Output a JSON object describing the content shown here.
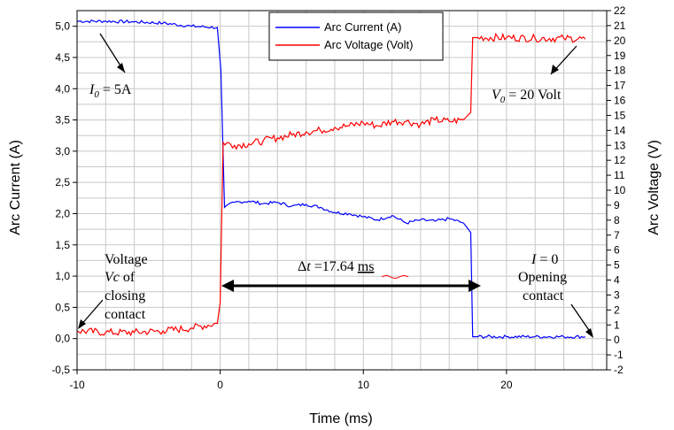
{
  "chart_data": {
    "type": "line",
    "xlabel": "Time (ms)",
    "ylabel_left": "Arc Current (A)",
    "ylabel_right": "Arc Voltage (V)",
    "xlim": [
      -10,
      27
    ],
    "ylim_left": [
      -0.5,
      5.25
    ],
    "ylim_right": [
      -2,
      22
    ],
    "x_ticks": [
      "-10",
      "0",
      "10",
      "20"
    ],
    "y_left_ticks": [
      "-0,5",
      "0,0",
      "0,5",
      "1,0",
      "1,5",
      "2,0",
      "2,5",
      "3,0",
      "3,5",
      "4,0",
      "4,5",
      "5,0"
    ],
    "y_right_ticks": [
      "-2",
      "-1",
      "0",
      "1",
      "2",
      "3",
      "4",
      "5",
      "6",
      "7",
      "8",
      "9",
      "10",
      "11",
      "12",
      "13",
      "14",
      "15",
      "16",
      "17",
      "18",
      "19",
      "20",
      "21",
      "22"
    ],
    "grid": true,
    "legend_position": "top-center",
    "series": [
      {
        "name": "Arc Current (A)",
        "axis": "left",
        "color": "#0000ff",
        "x": [
          -10,
          -8,
          -6,
          -4,
          -2,
          -0.2,
          0.05,
          0.3,
          1,
          2,
          3,
          4,
          5,
          6,
          7,
          8,
          9,
          10,
          11,
          12,
          13,
          14,
          15,
          16,
          17,
          17.5,
          17.64,
          18,
          20,
          22,
          24,
          25.5
        ],
        "y": [
          5.08,
          5.08,
          5.07,
          5.05,
          5.0,
          4.98,
          4.3,
          2.1,
          2.18,
          2.2,
          2.16,
          2.18,
          2.12,
          2.15,
          2.1,
          2.02,
          2.0,
          1.95,
          1.9,
          1.97,
          1.85,
          1.9,
          1.88,
          1.92,
          1.85,
          1.7,
          0.03,
          0.03,
          0.03,
          0.03,
          0.03,
          0.03
        ]
      },
      {
        "name": "Arc Voltage (Volt)",
        "axis": "right",
        "color": "#ff0000",
        "x": [
          -10,
          -8,
          -6,
          -4,
          -2,
          -0.2,
          0.0,
          0.2,
          1,
          2,
          3,
          4,
          5,
          6,
          7,
          8,
          9,
          10,
          11,
          12,
          13,
          14,
          15,
          16,
          17,
          17.5,
          17.64,
          18,
          20,
          22,
          24,
          25.5
        ],
        "y": [
          0.6,
          0.5,
          0.5,
          0.6,
          0.8,
          1.1,
          2.5,
          13.2,
          13.0,
          13.1,
          13.3,
          13.5,
          13.7,
          13.9,
          14.0,
          14.2,
          14.3,
          14.5,
          14.3,
          14.6,
          14.6,
          14.4,
          14.7,
          14.6,
          14.7,
          15.2,
          20.2,
          20.2,
          20.2,
          20.15,
          20.15,
          20.1
        ]
      }
    ]
  },
  "annotations": {
    "i0": "I",
    "i0_sub": "0",
    "i0_rest": " = 5A",
    "v0": "V",
    "v0_sub": "0",
    "v0_rest": " = 20 Volt",
    "voltage_line1": "Voltage",
    "voltage_line2_it": "Vc",
    "voltage_line2_rest": " of",
    "voltage_line3": "closing",
    "voltage_line4": "contact",
    "i_zero_it": "I",
    "i_zero_rest": " = 0",
    "opening_line1": "Opening",
    "opening_line2": "contact",
    "delta_t_symbol": "Δ",
    "delta_t_it": "t",
    "delta_t_value": " =17.64 ",
    "delta_t_unit": "ms"
  }
}
